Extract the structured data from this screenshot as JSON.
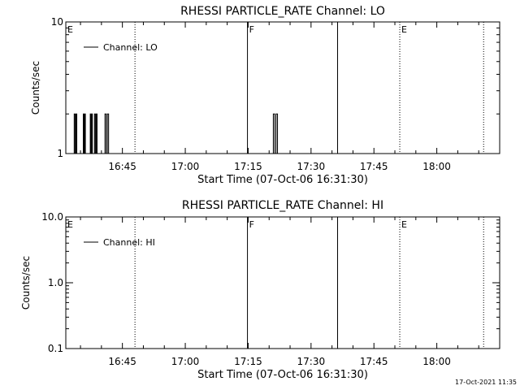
{
  "chart_data": [
    {
      "type": "line",
      "title": "RHESSI PARTICLE_RATE Channel: LO",
      "xlabel": "Start Time (07-Oct-06 16:31:30)",
      "ylabel": "Counts/sec",
      "y_scale": "log",
      "ylim": [
        1,
        10
      ],
      "xlim": [
        "16:31:30",
        "18:15:00"
      ],
      "x_ticks": [
        "16:45",
        "17:00",
        "17:15",
        "17:30",
        "17:45",
        "18:00"
      ],
      "y_ticks": [
        "1",
        "10"
      ],
      "grid": false,
      "legend": {
        "position": "top-left",
        "entries": [
          "Channel: LO"
        ]
      },
      "series": [
        {
          "name": "Channel: LO",
          "spikes": [
            {
              "start": "16:33:30",
              "end": "16:34:20",
              "peak": 2
            },
            {
              "start": "16:35:40",
              "end": "16:36:20",
              "peak": 2
            },
            {
              "start": "16:37:20",
              "end": "16:38:00",
              "peak": 2
            },
            {
              "start": "16:38:20",
              "end": "16:39:10",
              "peak": 2
            },
            {
              "start": "16:40:50",
              "end": "16:42:00",
              "peak": 2
            },
            {
              "start": "17:21:00",
              "end": "17:22:20",
              "peak": 2
            }
          ]
        }
      ],
      "markers": [
        {
          "label": "E",
          "time": "16:31:30",
          "style": "none"
        },
        {
          "label": "",
          "time": "16:48:00",
          "style": "dotted"
        },
        {
          "label": "F",
          "time": "17:14:50",
          "style": "solid"
        },
        {
          "label": "",
          "time": "17:36:20",
          "style": "solid"
        },
        {
          "label": "E",
          "time": "17:51:10",
          "style": "dotted"
        },
        {
          "label": "",
          "time": "18:11:10",
          "style": "dotted"
        }
      ]
    },
    {
      "type": "line",
      "title": "RHESSI PARTICLE_RATE Channel: HI",
      "xlabel": "Start Time (07-Oct-06 16:31:30)",
      "ylabel": "Counts/sec",
      "y_scale": "log",
      "ylim": [
        0.1,
        10
      ],
      "xlim": [
        "16:31:30",
        "18:15:00"
      ],
      "x_ticks": [
        "16:45",
        "17:00",
        "17:15",
        "17:30",
        "17:45",
        "18:00"
      ],
      "y_ticks": [
        "0.1",
        "1.0",
        "10.0"
      ],
      "grid": false,
      "legend": {
        "position": "top-left",
        "entries": [
          "Channel: HI"
        ]
      },
      "series": [
        {
          "name": "Channel: HI",
          "spikes": []
        }
      ],
      "markers": [
        {
          "label": "E",
          "time": "16:31:30",
          "style": "none"
        },
        {
          "label": "",
          "time": "16:48:00",
          "style": "dotted"
        },
        {
          "label": "F",
          "time": "17:14:50",
          "style": "solid"
        },
        {
          "label": "",
          "time": "17:36:20",
          "style": "solid"
        },
        {
          "label": "E",
          "time": "17:51:10",
          "style": "dotted"
        },
        {
          "label": "",
          "time": "18:11:10",
          "style": "dotted"
        }
      ]
    }
  ],
  "footer": {
    "timestamp": "17-Oct-2021 11:35"
  }
}
